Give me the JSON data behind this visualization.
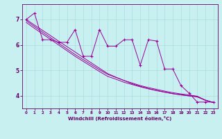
{
  "xlabel": "Windchill (Refroidissement éolien,°C)",
  "bg_color": "#c8f0f0",
  "line_color": "#990099",
  "grid_color": "#aadddd",
  "axis_color": "#660066",
  "text_color": "#660066",
  "xlim": [
    -0.5,
    23.5
  ],
  "ylim": [
    3.5,
    7.6
  ],
  "yticks": [
    4,
    5,
    6,
    7
  ],
  "xticks": [
    0,
    1,
    2,
    3,
    4,
    5,
    6,
    7,
    8,
    9,
    10,
    11,
    12,
    13,
    14,
    15,
    16,
    17,
    18,
    19,
    20,
    21,
    22,
    23
  ],
  "wiggly": [
    7.0,
    7.25,
    6.2,
    6.2,
    6.1,
    6.1,
    6.6,
    5.55,
    5.55,
    6.6,
    5.95,
    5.95,
    6.2,
    6.2,
    5.2,
    6.2,
    6.15,
    5.05,
    5.05,
    4.4,
    4.1,
    3.75,
    3.75,
    3.75
  ],
  "straight1": [
    6.95,
    6.72,
    6.5,
    6.28,
    6.06,
    5.84,
    5.62,
    5.42,
    5.22,
    5.02,
    4.84,
    4.72,
    4.6,
    4.5,
    4.4,
    4.32,
    4.25,
    4.18,
    4.12,
    4.07,
    4.03,
    3.98,
    3.82,
    3.73
  ],
  "straight2": [
    7.0,
    6.78,
    6.57,
    6.36,
    6.14,
    5.93,
    5.72,
    5.5,
    5.29,
    5.08,
    4.87,
    4.73,
    4.6,
    4.47,
    4.37,
    4.28,
    4.21,
    4.14,
    4.08,
    4.03,
    3.99,
    3.95,
    3.82,
    3.73
  ],
  "straight3": [
    6.88,
    6.65,
    6.43,
    6.21,
    5.99,
    5.77,
    5.55,
    5.35,
    5.15,
    4.95,
    4.76,
    4.65,
    4.53,
    4.44,
    4.35,
    4.27,
    4.2,
    4.14,
    4.08,
    4.04,
    4.0,
    3.97,
    3.83,
    3.73
  ]
}
